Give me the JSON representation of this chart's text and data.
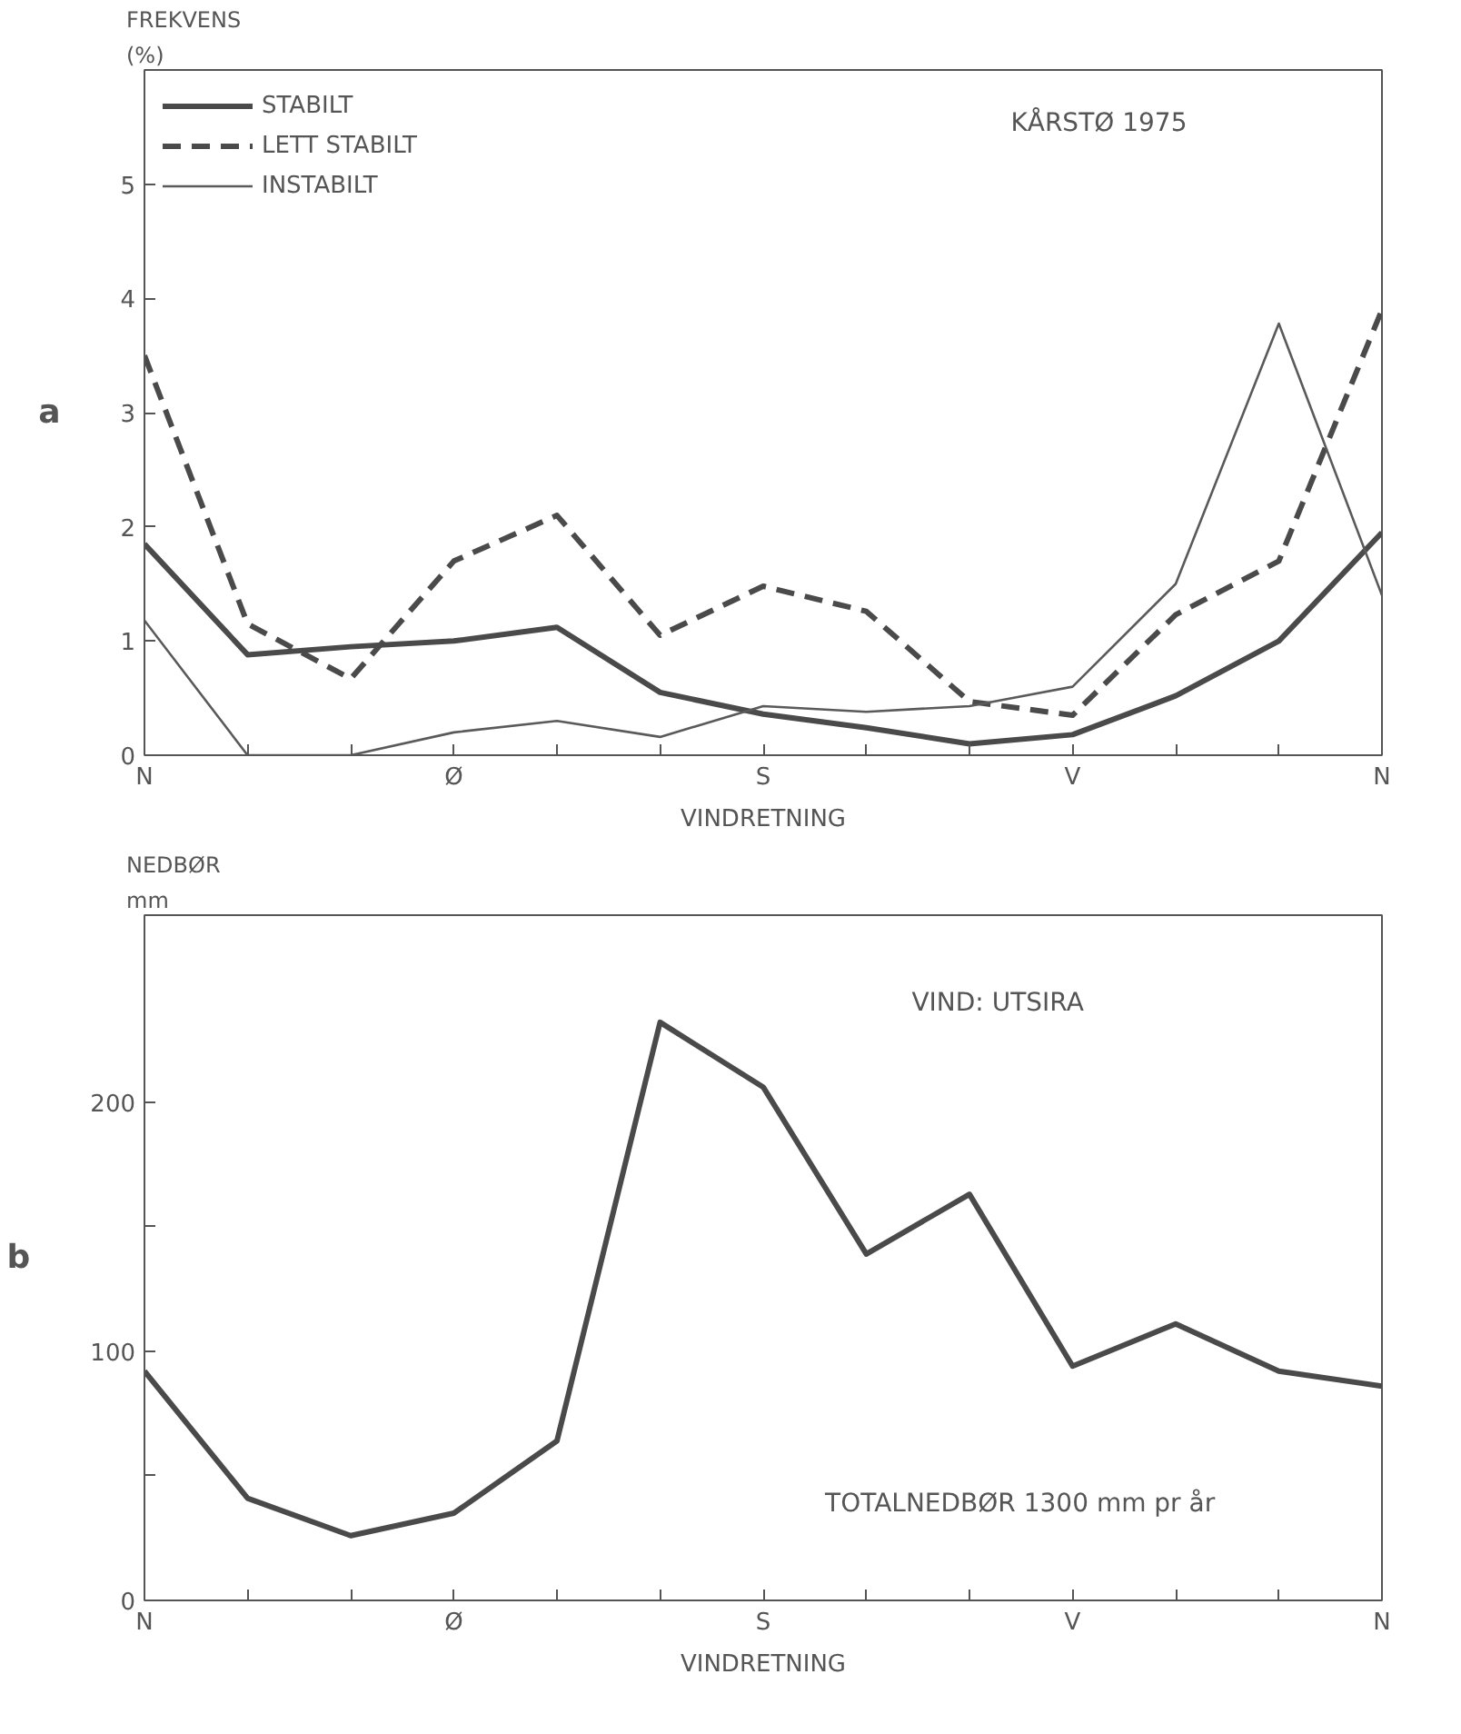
{
  "chart_data": [
    {
      "type": "line",
      "title": "a",
      "xlabel": "VINDRETNING",
      "ylabel": "FREKVENS\n(%)",
      "annotations": [
        "KÅRSTØ   1975"
      ],
      "categories": [
        "N",
        null,
        null,
        "Ø",
        null,
        null,
        "S",
        null,
        null,
        "V",
        null,
        null,
        "N"
      ],
      "ylim": [
        0,
        6
      ],
      "yticks": [
        0,
        1,
        2,
        3,
        4,
        5
      ],
      "grid": false,
      "legend": "top left",
      "series": [
        {
          "name": "STABILT",
          "color": "#4a4a4a",
          "line_style": "solid",
          "values": [
            1.85,
            0.88,
            0.95,
            1.0,
            1.12,
            0.55,
            0.36,
            0.24,
            0.1,
            0.18,
            0.52,
            1.0,
            1.95
          ]
        },
        {
          "name": "LETT STABILT",
          "color": "#4a4a4a",
          "line_style": "dashed",
          "values": [
            3.5,
            1.15,
            0.67,
            1.7,
            2.1,
            1.05,
            1.48,
            1.26,
            0.47,
            0.35,
            1.23,
            1.7,
            3.9
          ]
        },
        {
          "name": "INSTABILT",
          "color": "#5a5a5a",
          "line_style": "solid",
          "values": [
            1.18,
            0,
            0,
            0.2,
            0.3,
            0.16,
            0.43,
            0.38,
            0.43,
            0.6,
            1.5,
            3.78,
            1.4
          ]
        }
      ]
    },
    {
      "type": "line",
      "title": "b",
      "xlabel": "VINDRETNING",
      "ylabel": "NEDBØR\nmm",
      "annotations": [
        "VIND: UTSIRA",
        "TOTALNEDBØR   1300 mm pr år"
      ],
      "categories": [
        "N",
        null,
        null,
        "Ø",
        null,
        null,
        "S",
        null,
        null,
        "V",
        null,
        null,
        "N"
      ],
      "ylim": [
        0,
        275
      ],
      "yticks": [
        0,
        {
          "value": 50,
          "label": null
        },
        100,
        {
          "value": 150,
          "label": null
        },
        200
      ],
      "grid": false,
      "series": [
        {
          "color": "#4a4a4a",
          "line_style": "solid",
          "values": [
            92,
            41,
            26,
            35,
            64,
            232,
            206,
            139,
            163,
            94,
            111,
            92,
            86
          ]
        }
      ]
    }
  ]
}
